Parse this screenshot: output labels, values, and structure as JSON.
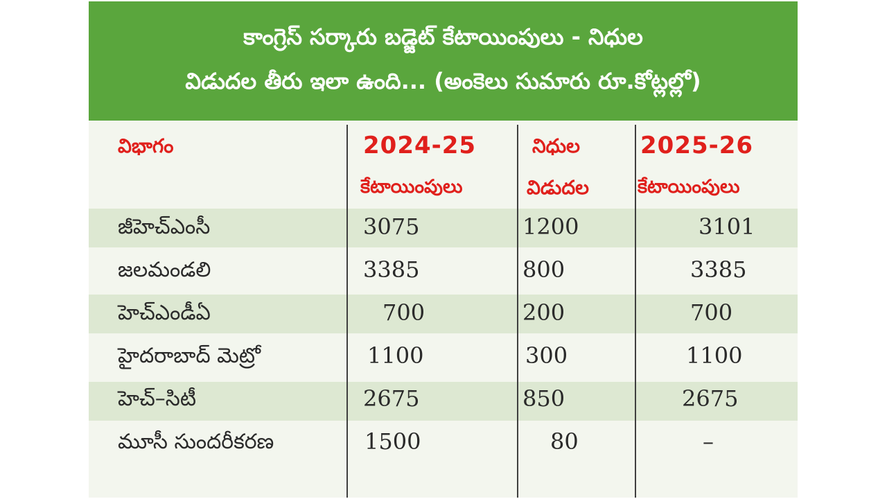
{
  "title": {
    "line1": "కాంగ్రెస్ సర్కారు బడ్జెట్ కేటాయింపులు - నిధుల",
    "line2": "విడుదల తీరు ఇలా ఉంది... (అంకెలు సుమారు రూ.కోట్లల్లో)"
  },
  "table": {
    "headers": {
      "department": "విభాగం",
      "col1_year": "2024-25",
      "col1_label": "కేటాయింపులు",
      "col2_line1": "నిధుల",
      "col2_line2": "విడుదల",
      "col3_year": "2025-26",
      "col3_label": "కేటాయింపులు"
    },
    "rows": [
      {
        "name": "జీహెచ్ఎంసీ",
        "alloc_2024_25": "3075",
        "released": "1200",
        "alloc_2025_26": "3101"
      },
      {
        "name": "జలమండలి",
        "alloc_2024_25": "3385",
        "released": "800",
        "alloc_2025_26": "3385"
      },
      {
        "name": "హెచ్ఎండీఏ",
        "alloc_2024_25": "700",
        "released": "200",
        "alloc_2025_26": "700"
      },
      {
        "name": "హైదరాబాద్ మెట్రో",
        "alloc_2024_25": "1100",
        "released": "300",
        "alloc_2025_26": "1100"
      },
      {
        "name": "హెచ్–సిటీ",
        "alloc_2024_25": "2675",
        "released": "850",
        "alloc_2025_26": "2675"
      },
      {
        "name": "మూసీ సుందరీకరణ",
        "alloc_2024_25": "1500",
        "released": "80",
        "alloc_2025_26": "–"
      }
    ]
  },
  "colors": {
    "header_bg": "#5aa63d",
    "header_text": "#ffffff",
    "column_header_text": "#e0201c",
    "band": "#dde8d2",
    "table_bg": "#f3f6ee"
  }
}
